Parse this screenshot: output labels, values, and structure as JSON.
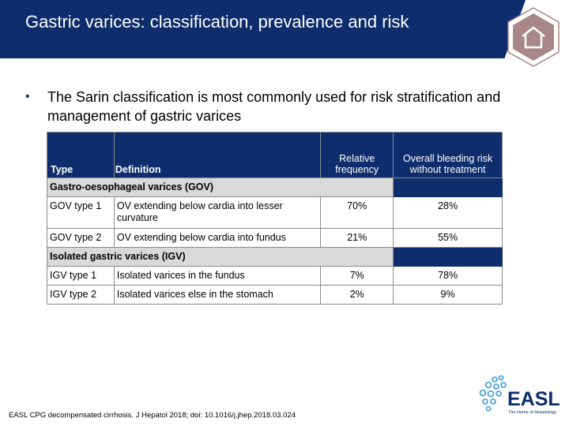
{
  "title": "Gastric varices: classification, prevalence and risk",
  "bullet": "The Sarin classification is most commonly used for risk stratification and management of gastric varices",
  "table": {
    "headers": {
      "type": "Type",
      "definition": "Definition",
      "frequency": "Relative frequency",
      "risk": "Overall bleeding risk without treatment"
    },
    "groups": [
      {
        "label": "Gastro-oesophageal varices (GOV)",
        "rows": [
          {
            "type": "GOV type 1",
            "definition": "OV extending below cardia into lesser curvature",
            "frequency": "70%",
            "risk": "28%"
          },
          {
            "type": "GOV type 2",
            "definition": "OV extending below cardia into fundus",
            "frequency": "21%",
            "risk": "55%"
          }
        ]
      },
      {
        "label": "Isolated gastric varices (IGV)",
        "rows": [
          {
            "type": "IGV type 1",
            "definition": "Isolated varices in the fundus",
            "frequency": "7%",
            "risk": "78%"
          },
          {
            "type": "IGV type 2",
            "definition": "Isolated varices else in the stomach",
            "frequency": "2%",
            "risk": "9%"
          }
        ]
      }
    ]
  },
  "footnote": "EASL CPG decompensated cirrhosis. J Hepatol 2018; doi: 10.1016/j.jhep.2018.03.024",
  "logo": {
    "name": "EASL",
    "tagline": "The Home of Hepatology",
    "color": "#0d2d6c",
    "accent": "#3a9ad9"
  },
  "home_icon": "home-icon",
  "colors": {
    "navy": "#0d2d6c",
    "group_gray": "#d9d9d9",
    "home_tint": "#a8868a"
  }
}
